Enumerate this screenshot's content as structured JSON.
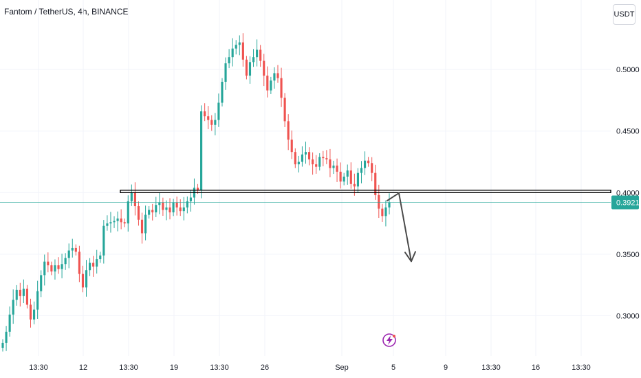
{
  "title": "Fantom / TetherUS, 4h, BINANCE",
  "currency": "USDT",
  "colors": {
    "up": "#26a69a",
    "down": "#ef5350",
    "grid": "#f0f3fa",
    "level": "#000000",
    "price_line": "#26a69a",
    "price_badge": "#26a69a",
    "arrow": "#4a4a4a",
    "logo": "#9c27b0"
  },
  "chart_data": {
    "type": "candlestick",
    "title": "Fantom / TetherUS, 4h, BINANCE",
    "ylim": [
      0.27,
      0.54
    ],
    "y_ticks": [
      "0.5000",
      "0.4500",
      "0.4000",
      "0.3500",
      "0.3000"
    ],
    "x_ticks": [
      "13:30",
      "12",
      "13:30",
      "19",
      "13:30",
      "26",
      "Sep",
      "5",
      "9",
      "13:30",
      "16",
      "13:30"
    ],
    "current_price": "0.3921",
    "support_zone": [
      0.4,
      0.402
    ],
    "projection_arrow": [
      0.403,
      0.347
    ],
    "close_series": [
      0.278,
      0.287,
      0.301,
      0.313,
      0.321,
      0.316,
      0.322,
      0.309,
      0.297,
      0.305,
      0.32,
      0.333,
      0.344,
      0.341,
      0.336,
      0.341,
      0.338,
      0.342,
      0.347,
      0.353,
      0.355,
      0.352,
      0.334,
      0.323,
      0.337,
      0.343,
      0.34,
      0.346,
      0.349,
      0.373,
      0.375,
      0.376,
      0.377,
      0.379,
      0.376,
      0.375,
      0.393,
      0.4,
      0.389,
      0.378,
      0.367,
      0.382,
      0.386,
      0.384,
      0.39,
      0.392,
      0.386,
      0.388,
      0.384,
      0.392,
      0.388,
      0.385,
      0.388,
      0.393,
      0.396,
      0.404,
      0.402,
      0.466,
      0.462,
      0.459,
      0.455,
      0.459,
      0.473,
      0.49,
      0.505,
      0.51,
      0.517,
      0.52,
      0.522,
      0.508,
      0.495,
      0.506,
      0.51,
      0.516,
      0.507,
      0.495,
      0.483,
      0.491,
      0.497,
      0.493,
      0.477,
      0.458,
      0.443,
      0.433,
      0.423,
      0.425,
      0.431,
      0.433,
      0.427,
      0.423,
      0.421,
      0.429,
      0.428,
      0.427,
      0.42,
      0.422,
      0.417,
      0.409,
      0.413,
      0.418,
      0.407,
      0.405,
      0.416,
      0.42,
      0.426,
      0.424,
      0.416,
      0.398,
      0.387,
      0.381,
      0.388,
      0.392
    ]
  }
}
